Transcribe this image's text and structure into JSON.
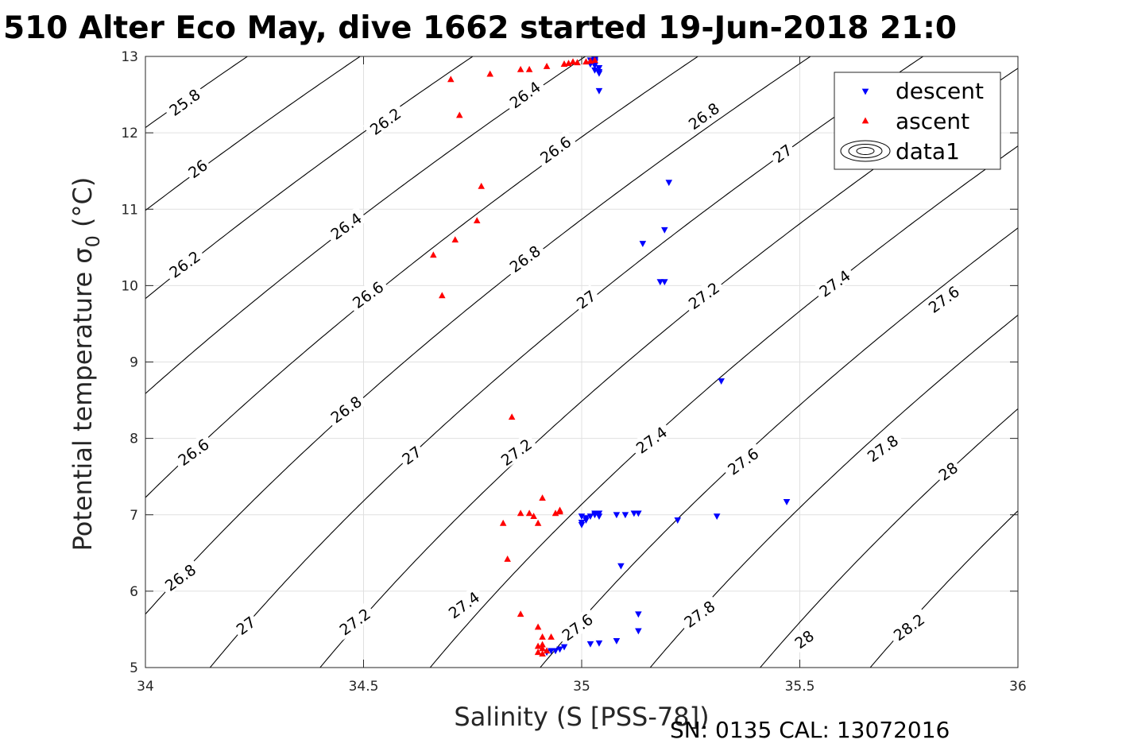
{
  "chart_data": {
    "type": "scatter",
    "title": "510 Alter Eco May, dive 1662 started 19-Jun-2018 21:0",
    "xlabel": "Salinity (S [PSS-78])",
    "ylabel": "Potential temperature σ",
    "ylabel_subscript": "0",
    "ylabel_suffix": " (°C)",
    "footer": "SN: 0135  CAL: 13072016",
    "xlim": [
      34,
      36
    ],
    "ylim": [
      5,
      13
    ],
    "x_ticks": [
      34,
      34.5,
      35,
      35.5,
      36
    ],
    "x_tick_labels": [
      "34",
      "34.5",
      "35",
      "35.5",
      "36"
    ],
    "y_ticks": [
      5,
      6,
      7,
      8,
      9,
      10,
      11,
      12,
      13
    ],
    "y_tick_labels": [
      "5",
      "6",
      "7",
      "8",
      "9",
      "10",
      "11",
      "12",
      "13"
    ],
    "grid": true,
    "legend_position": "top-right",
    "series": [
      {
        "name": "descent",
        "marker": "triangle-down",
        "color": "#0000ff",
        "x": [
          35.04,
          35.08,
          35.13,
          35.13,
          35.09,
          35.02,
          35.18,
          35.14,
          35.19,
          35.2,
          35.19,
          35.32,
          35.47,
          35.31,
          35.22,
          35.1,
          35.12,
          35.13,
          35.08,
          35.04,
          35.0,
          34.96,
          34.95,
          34.94,
          34.93,
          34.92,
          35.0,
          35.0,
          35.01,
          35.01,
          35.02,
          35.03,
          35.03,
          35.04,
          35.04,
          35.02,
          35.03,
          35.03,
          35.03,
          35.03,
          35.02,
          35.03,
          35.03,
          35.03,
          35.04,
          35.04,
          35.04
        ],
        "y": [
          5.32,
          5.35,
          5.48,
          5.7,
          6.33,
          5.31,
          10.05,
          10.55,
          10.73,
          11.35,
          10.05,
          8.75,
          7.17,
          6.98,
          6.93,
          7.0,
          7.02,
          7.02,
          7.0,
          6.98,
          6.98,
          5.27,
          5.24,
          5.22,
          5.22,
          5.2,
          6.87,
          6.9,
          6.93,
          6.96,
          6.98,
          7.0,
          7.02,
          7.02,
          12.85,
          12.9,
          12.93,
          12.95,
          12.88,
          12.82,
          12.95,
          12.96,
          12.94,
          12.92,
          12.8,
          12.78,
          12.55
        ]
      },
      {
        "name": "ascent",
        "marker": "triangle-up",
        "color": "#ff0000",
        "x": [
          34.66,
          34.68,
          34.71,
          34.76,
          34.77,
          34.84,
          34.7,
          34.72,
          34.79,
          34.86,
          34.88,
          34.92,
          34.96,
          34.99,
          35.01,
          35.02,
          35.03,
          34.98,
          34.97,
          34.96,
          34.86,
          34.91,
          34.88,
          34.82,
          34.83,
          34.86,
          34.9,
          34.93,
          34.94,
          34.95,
          34.95,
          34.89,
          34.9,
          34.91,
          34.9,
          34.91,
          34.92,
          34.9,
          34.91,
          34.91
        ],
        "y": [
          10.4,
          9.87,
          10.6,
          10.85,
          11.3,
          8.28,
          12.7,
          12.23,
          12.77,
          12.83,
          12.83,
          12.87,
          12.9,
          12.92,
          12.93,
          12.94,
          12.95,
          12.93,
          12.91,
          12.9,
          7.02,
          7.22,
          7.02,
          6.89,
          6.42,
          5.7,
          5.53,
          5.4,
          7.02,
          7.06,
          7.04,
          6.98,
          6.89,
          5.4,
          5.28,
          5.25,
          5.22,
          5.2,
          5.18,
          5.3
        ]
      }
    ],
    "contours": {
      "name": "data1",
      "color": "#000000",
      "levels": [
        25.8,
        26.0,
        26.2,
        26.4,
        26.6,
        26.8,
        27.0,
        27.2,
        27.4,
        27.6,
        27.8,
        28.0,
        28.2
      ],
      "labels": [
        {
          "text": "25.8",
          "x": 34.09,
          "y": 12.4
        },
        {
          "text": "26",
          "x": 34.12,
          "y": 11.53
        },
        {
          "text": "26.2",
          "x": 34.09,
          "y": 10.28
        },
        {
          "text": "26.2",
          "x": 34.55,
          "y": 12.15
        },
        {
          "text": "26.4",
          "x": 34.46,
          "y": 10.78
        },
        {
          "text": "26.4",
          "x": 34.87,
          "y": 12.5
        },
        {
          "text": "26.6",
          "x": 34.11,
          "y": 7.82
        },
        {
          "text": "26.6",
          "x": 34.51,
          "y": 9.88
        },
        {
          "text": "26.6",
          "x": 34.94,
          "y": 11.78
        },
        {
          "text": "26.8",
          "x": 34.08,
          "y": 6.18
        },
        {
          "text": "26.8",
          "x": 34.46,
          "y": 8.38
        },
        {
          "text": "26.8",
          "x": 34.87,
          "y": 10.35
        },
        {
          "text": "26.8",
          "x": 35.28,
          "y": 12.22
        },
        {
          "text": "27",
          "x": 34.23,
          "y": 5.55
        },
        {
          "text": "27",
          "x": 34.61,
          "y": 7.78
        },
        {
          "text": "27",
          "x": 35.01,
          "y": 9.82
        },
        {
          "text": "27",
          "x": 35.46,
          "y": 11.73
        },
        {
          "text": "27.2",
          "x": 34.48,
          "y": 5.6
        },
        {
          "text": "27.2",
          "x": 34.85,
          "y": 7.82
        },
        {
          "text": "27.2",
          "x": 35.28,
          "y": 9.87
        },
        {
          "text": "27.4",
          "x": 34.73,
          "y": 5.82
        },
        {
          "text": "27.4",
          "x": 35.16,
          "y": 7.98
        },
        {
          "text": "27.4",
          "x": 35.58,
          "y": 10.03
        },
        {
          "text": "27.6",
          "x": 34.99,
          "y": 5.53
        },
        {
          "text": "27.6",
          "x": 35.37,
          "y": 7.7
        },
        {
          "text": "27.6",
          "x": 35.83,
          "y": 9.82
        },
        {
          "text": "27.8",
          "x": 35.27,
          "y": 5.7
        },
        {
          "text": "27.8",
          "x": 35.69,
          "y": 7.87
        },
        {
          "text": "28",
          "x": 35.51,
          "y": 5.37
        },
        {
          "text": "28",
          "x": 35.84,
          "y": 7.57
        },
        {
          "text": "28.2",
          "x": 35.75,
          "y": 5.53
        }
      ]
    }
  }
}
